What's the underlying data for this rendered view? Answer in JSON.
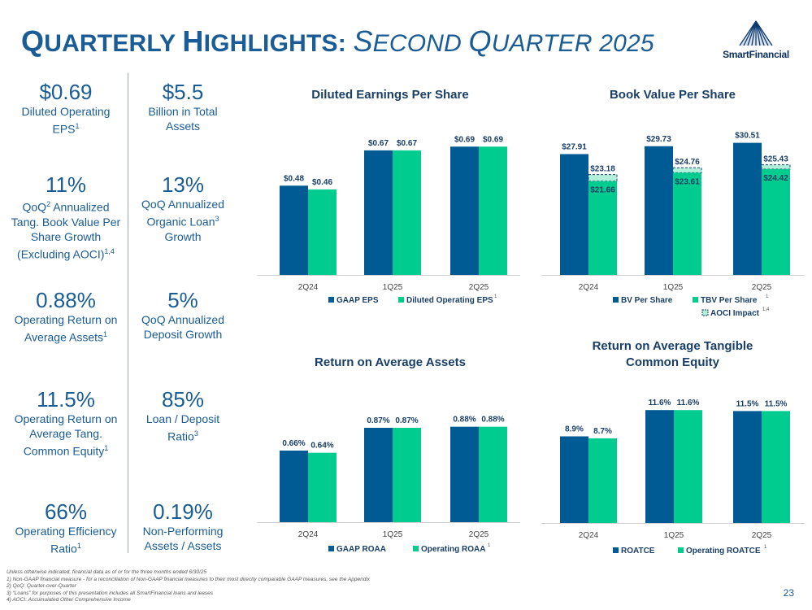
{
  "header": {
    "title_q": "Q",
    "title_rest": "UARTERLY ",
    "title_h": "H",
    "title_rest2": "IGHLIGHTS: ",
    "title_s": "S",
    "title_rest3": "ECOND ",
    "title_q2": "Q",
    "title_rest4": "UARTER 2025",
    "logo_text": "SmartFinancial"
  },
  "kpis": [
    {
      "value": "$0.69",
      "label": "Diluted Operating EPS",
      "sup": "1"
    },
    {
      "value": "$5.5",
      "label": "Billion in Total Assets",
      "sup": ""
    },
    {
      "value": "11%",
      "label_pre": "QoQ",
      "label_sup1": "2",
      "label": " Annualized Tang. Book Value Per Share Growth (Excluding AOCI)",
      "sup": "1,4"
    },
    {
      "value": "13%",
      "label": "QoQ Annualized Organic Loan",
      "sup": "3",
      "label_post": " Growth"
    },
    {
      "value": "0.88%",
      "label": "Operating Return on Average Assets",
      "sup": "1"
    },
    {
      "value": "5%",
      "label": "QoQ Annualized Deposit Growth",
      "sup": ""
    },
    {
      "value": "11.5%",
      "label": "Operating Return on Average Tang. Common Equity",
      "sup": "1"
    },
    {
      "value": "85%",
      "label": "Loan / Deposit Ratio",
      "sup": "3"
    },
    {
      "value": "66%",
      "label": "Operating Efficiency Ratio",
      "sup": "1"
    },
    {
      "value": "0.19%",
      "label": "Non-Performing Assets / Assets",
      "sup": ""
    }
  ],
  "chart_data": [
    {
      "type": "bar",
      "title": "Diluted Earnings Per Share",
      "categories": [
        "2Q24",
        "1Q25",
        "2Q25"
      ],
      "series": [
        {
          "name": "GAAP EPS",
          "values": [
            0.48,
            0.67,
            0.69
          ],
          "labels": [
            "$0.48",
            "$0.67",
            "$0.69"
          ]
        },
        {
          "name": "Diluted Operating EPS",
          "values": [
            0.46,
            0.67,
            0.69
          ],
          "labels": [
            "$0.46",
            "$0.67",
            "$0.69"
          ],
          "sup": "1"
        }
      ],
      "ylim": [
        0,
        0.7
      ],
      "legend": "bottom",
      "colors": [
        "#005b94",
        "#00cc8f"
      ]
    },
    {
      "type": "bar",
      "title": "Book Value Per Share",
      "categories": [
        "2Q24",
        "1Q25",
        "2Q25"
      ],
      "series": [
        {
          "name": "BV Per Share",
          "values": [
            27.91,
            29.73,
            30.51
          ],
          "labels": [
            "$27.91",
            "$29.73",
            "$30.51"
          ]
        },
        {
          "name": "TBV Per Share",
          "values": [
            21.66,
            23.61,
            24.42
          ],
          "labels": [
            "$21.66",
            "$23.61",
            "$24.42"
          ],
          "sup": "1"
        },
        {
          "name": "AOCI Impact",
          "values": [
            23.18,
            24.76,
            25.43
          ],
          "labels": [
            "$23.18",
            "$24.76",
            "$25.43"
          ],
          "sup": "1,4"
        }
      ],
      "ylim": [
        0,
        31
      ],
      "legend": "bottom",
      "colors": [
        "#005b94",
        "#00cc8f",
        "#b3f0dc"
      ]
    },
    {
      "type": "bar",
      "title": "Return on Average Assets",
      "categories": [
        "2Q24",
        "1Q25",
        "2Q25"
      ],
      "series": [
        {
          "name": "GAAP ROAA",
          "values": [
            0.66,
            0.87,
            0.88
          ],
          "labels": [
            "0.66%",
            "0.87%",
            "0.88%"
          ]
        },
        {
          "name": "Operating ROAA",
          "values": [
            0.64,
            0.87,
            0.88
          ],
          "labels": [
            "0.64%",
            "0.87%",
            "0.88%"
          ],
          "sup": "1"
        }
      ],
      "ylim": [
        0,
        0.9
      ],
      "legend": "bottom",
      "colors": [
        "#005b94",
        "#00cc8f"
      ]
    },
    {
      "type": "bar",
      "title": "Return on Average Tangible Common Equity",
      "categories": [
        "2Q24",
        "1Q25",
        "2Q25"
      ],
      "series": [
        {
          "name": "ROATCE",
          "values": [
            8.9,
            11.6,
            11.5
          ],
          "labels": [
            "8.9%",
            "11.6%",
            "11.5%"
          ]
        },
        {
          "name": "Operating ROATCE",
          "values": [
            8.7,
            11.6,
            11.5
          ],
          "labels": [
            "8.7%",
            "11.6%",
            "11.5%"
          ],
          "sup": "1"
        }
      ],
      "ylim": [
        0,
        11.7
      ],
      "legend": "bottom",
      "colors": [
        "#005b94",
        "#00cc8f"
      ]
    }
  ],
  "footnotes": [
    "Unless otherwise indicated, financial data as of or for the three months ended 6/30/25",
    "1)   Non-GAAP financial measure - for a reconciliation of Non-GAAP financial measures to their most directly comparable GAAP measures, see the Appendix",
    "2)   QoQ: Quarter-over-Quarter",
    "3)   “Loans” for purposes of this presentation includes all SmartFinancial loans and leases",
    "4)   AOCI: Accumulated Other Comprehensive Income"
  ],
  "page_number": "23"
}
